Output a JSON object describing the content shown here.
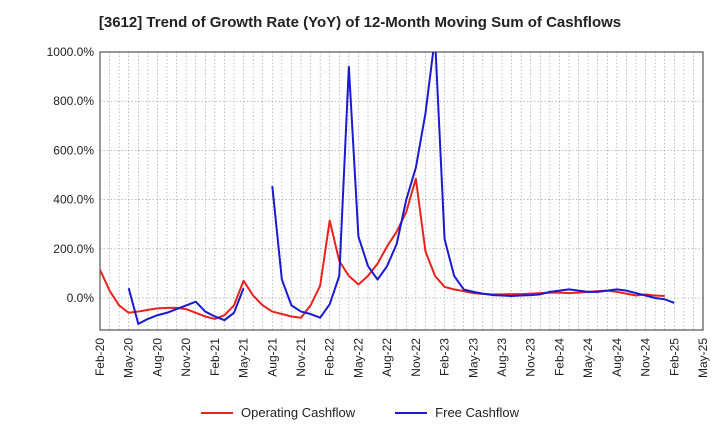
{
  "chart_data": {
    "type": "line",
    "title": "[3612]  Trend of Growth Rate (YoY) of 12-Month Moving Sum of Cashflows",
    "xlabel": "",
    "ylabel": "",
    "ylim": [
      -130,
      1000
    ],
    "grid": true,
    "legend_position": "bottom",
    "y_ticks": [
      "0.0%",
      "200.0%",
      "400.0%",
      "600.0%",
      "800.0%",
      "1000.0%"
    ],
    "y_tick_values": [
      0,
      200,
      400,
      600,
      800,
      1000
    ],
    "x_ticks": [
      "Feb-20",
      "May-20",
      "Aug-20",
      "Nov-20",
      "Feb-21",
      "May-21",
      "Aug-21",
      "Nov-21",
      "Feb-22",
      "May-22",
      "Aug-22",
      "Nov-22",
      "Feb-23",
      "May-23",
      "Aug-23",
      "Nov-23",
      "Feb-24",
      "May-24",
      "Aug-24",
      "Nov-24",
      "Feb-25",
      "May-25"
    ],
    "x_start": "Feb-20",
    "series": [
      {
        "name": "Operating Cashflow",
        "color": "#e8231e",
        "values": [
          115,
          30,
          -30,
          -60,
          -55,
          -48,
          -42,
          -40,
          -40,
          -45,
          -60,
          -75,
          -85,
          -70,
          -30,
          70,
          10,
          -30,
          -55,
          -65,
          -75,
          -80,
          -30,
          50,
          315,
          150,
          90,
          55,
          90,
          140,
          210,
          270,
          350,
          485,
          190,
          90,
          45,
          35,
          28,
          20,
          17,
          15,
          15,
          16,
          16,
          18,
          20,
          22,
          22,
          20,
          22,
          25,
          28,
          30,
          25,
          18,
          10,
          15,
          10,
          8
        ]
      },
      {
        "name": "Free Cashflow",
        "color": "#1a1ad0",
        "values": [
          null,
          null,
          null,
          40,
          -105,
          -85,
          -70,
          -60,
          -45,
          -30,
          -15,
          -55,
          -75,
          -90,
          -60,
          40,
          null,
          null,
          455,
          75,
          -30,
          -55,
          -65,
          -80,
          -25,
          90,
          940,
          250,
          130,
          75,
          130,
          220,
          400,
          530,
          750,
          1060,
          240,
          90,
          35,
          25,
          18,
          12,
          10,
          8,
          10,
          12,
          15,
          25,
          30,
          35,
          30,
          25,
          25,
          30,
          35,
          30,
          20,
          10,
          0,
          -5,
          -20
        ]
      }
    ]
  }
}
